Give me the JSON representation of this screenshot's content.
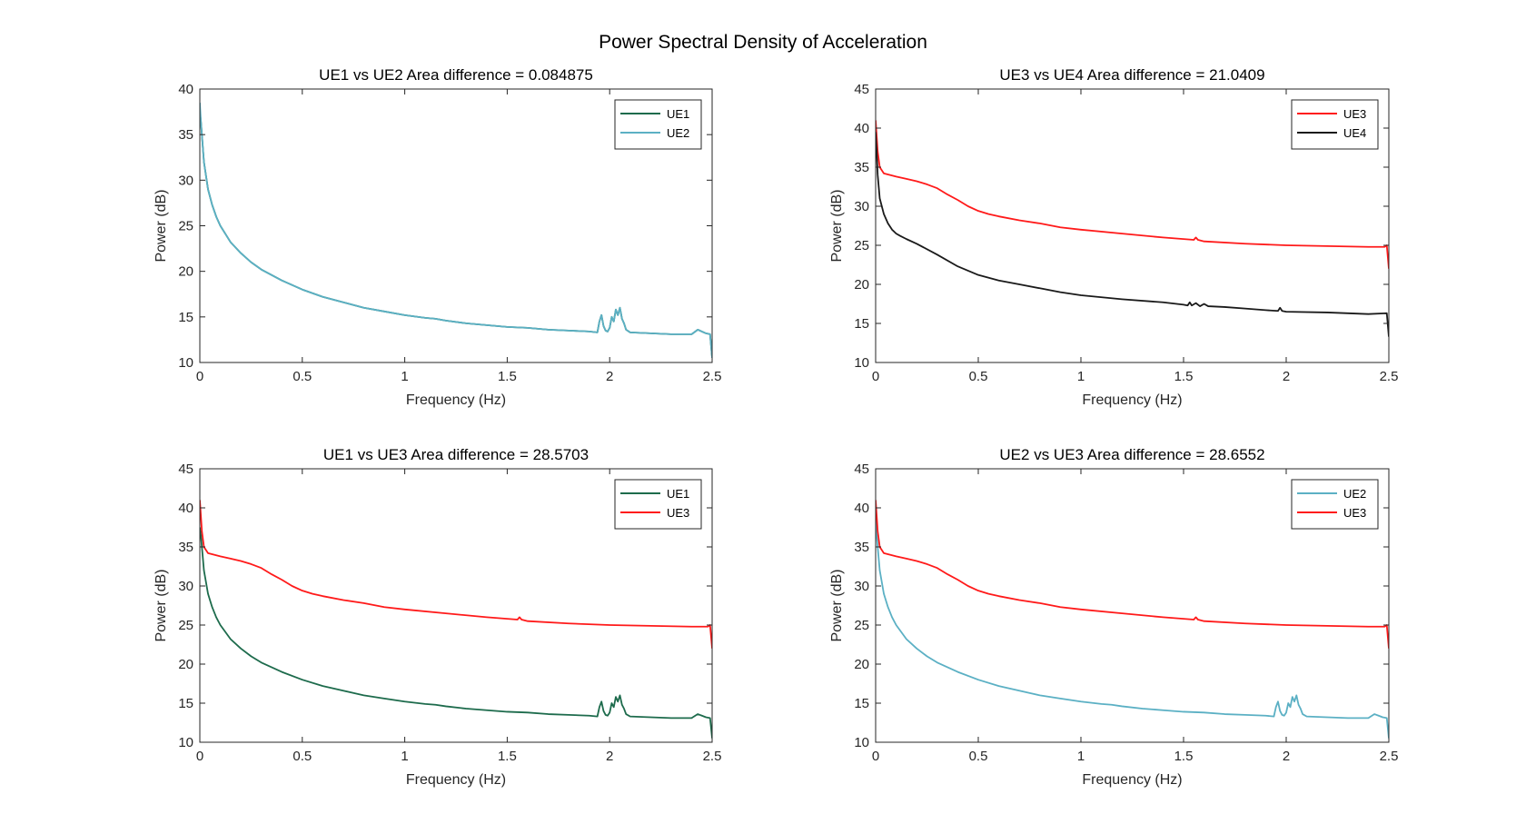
{
  "figure_title": "Power Spectral Density of Acceleration",
  "colors": {
    "UE1": "#1d6b4c",
    "UE2": "#5bb0c4",
    "UE3": "#ff1a1a",
    "UE4": "#1a1a1a"
  },
  "chart_data": [
    {
      "type": "line",
      "title": "UE1 vs UE2   Area difference = 0.084875",
      "xlabel": "Frequency (Hz)",
      "ylabel": "Power (dB)",
      "xlim": [
        0,
        2.5
      ],
      "ylim": [
        10,
        40
      ],
      "xticks": [
        "0",
        "0.5",
        "1",
        "1.5",
        "2",
        "2.5"
      ],
      "yticks": [
        "10",
        "15",
        "20",
        "25",
        "30",
        "35",
        "40"
      ],
      "legend_position": "top-right",
      "series": [
        {
          "name": "UE1",
          "color": "#1d6b4c",
          "x": [
            0,
            0.005,
            0.01,
            0.02,
            0.04,
            0.06,
            0.08,
            0.1,
            0.15,
            0.2,
            0.25,
            0.3,
            0.4,
            0.5,
            0.6,
            0.7,
            0.8,
            0.9,
            1.0,
            1.1,
            1.15,
            1.2,
            1.3,
            1.4,
            1.5,
            1.6,
            1.7,
            1.8,
            1.9,
            1.94,
            1.95,
            1.96,
            1.97,
            1.98,
            1.99,
            2.0,
            2.01,
            2.02,
            2.03,
            2.04,
            2.05,
            2.06,
            2.07,
            2.08,
            2.1,
            2.2,
            2.3,
            2.4,
            2.43,
            2.45,
            2.47,
            2.49,
            2.5
          ],
          "y": [
            37.5,
            36.5,
            35,
            32,
            29,
            27.3,
            26,
            25,
            23.2,
            22,
            21,
            20.2,
            19,
            18,
            17.2,
            16.6,
            16,
            15.6,
            15.2,
            14.9,
            14.8,
            14.6,
            14.3,
            14.1,
            13.9,
            13.8,
            13.6,
            13.5,
            13.4,
            13.3,
            14.5,
            15.2,
            14,
            13.5,
            13.4,
            13.8,
            15,
            14.5,
            15.8,
            15.2,
            16,
            14.8,
            14.3,
            13.6,
            13.3,
            13.2,
            13.1,
            13.1,
            13.6,
            13.4,
            13.2,
            13.1,
            10.5
          ]
        },
        {
          "name": "UE2",
          "color": "#5bb0c4",
          "x": [
            0,
            0.005,
            0.01,
            0.02,
            0.04,
            0.06,
            0.08,
            0.1,
            0.15,
            0.2,
            0.25,
            0.3,
            0.4,
            0.5,
            0.6,
            0.7,
            0.8,
            0.9,
            1.0,
            1.1,
            1.15,
            1.2,
            1.3,
            1.4,
            1.5,
            1.6,
            1.7,
            1.8,
            1.9,
            1.94,
            1.95,
            1.96,
            1.97,
            1.98,
            1.99,
            2.0,
            2.01,
            2.02,
            2.03,
            2.04,
            2.05,
            2.06,
            2.07,
            2.08,
            2.1,
            2.2,
            2.3,
            2.4,
            2.43,
            2.45,
            2.47,
            2.49,
            2.5
          ],
          "y": [
            38.5,
            36.5,
            35,
            32,
            29,
            27.3,
            26,
            25,
            23.2,
            22,
            21,
            20.2,
            19,
            18,
            17.2,
            16.6,
            16,
            15.6,
            15.2,
            14.9,
            14.8,
            14.6,
            14.3,
            14.1,
            13.9,
            13.8,
            13.6,
            13.5,
            13.4,
            13.3,
            14.5,
            15.2,
            14,
            13.5,
            13.4,
            13.8,
            15,
            14.5,
            15.8,
            15.2,
            16,
            14.8,
            14.3,
            13.6,
            13.3,
            13.2,
            13.1,
            13.1,
            13.6,
            13.4,
            13.2,
            13.1,
            10.5
          ]
        }
      ]
    },
    {
      "type": "line",
      "title": "UE3 vs UE4   Area difference = 21.0409",
      "xlabel": "Frequency (Hz)",
      "ylabel": "Power (dB)",
      "xlim": [
        0,
        2.5
      ],
      "ylim": [
        10,
        45
      ],
      "xticks": [
        "0",
        "0.5",
        "1",
        "1.5",
        "2",
        "2.5"
      ],
      "yticks": [
        "10",
        "15",
        "20",
        "25",
        "30",
        "35",
        "40",
        "45"
      ],
      "legend_position": "top-right",
      "series": [
        {
          "name": "UE3",
          "color": "#ff1a1a",
          "x": [
            0,
            0.005,
            0.01,
            0.02,
            0.04,
            0.07,
            0.1,
            0.15,
            0.2,
            0.25,
            0.3,
            0.35,
            0.4,
            0.45,
            0.5,
            0.55,
            0.6,
            0.7,
            0.8,
            0.9,
            1.0,
            1.2,
            1.4,
            1.5,
            1.55,
            1.56,
            1.57,
            1.6,
            1.8,
            2.0,
            2.2,
            2.4,
            2.48,
            2.49,
            2.5
          ],
          "y": [
            41,
            39,
            37,
            35,
            34.2,
            34,
            33.8,
            33.5,
            33.2,
            32.8,
            32.3,
            31.5,
            30.8,
            30,
            29.4,
            29,
            28.7,
            28.2,
            27.8,
            27.3,
            27,
            26.5,
            26,
            25.8,
            25.7,
            26,
            25.7,
            25.5,
            25.2,
            25,
            24.9,
            24.8,
            24.8,
            25,
            22
          ]
        },
        {
          "name": "UE4",
          "color": "#1a1a1a",
          "x": [
            0,
            0.005,
            0.01,
            0.02,
            0.04,
            0.06,
            0.08,
            0.1,
            0.12,
            0.15,
            0.2,
            0.3,
            0.4,
            0.5,
            0.6,
            0.7,
            0.8,
            0.9,
            1.0,
            1.2,
            1.4,
            1.5,
            1.52,
            1.53,
            1.54,
            1.56,
            1.58,
            1.6,
            1.62,
            1.7,
            1.8,
            1.9,
            1.96,
            1.97,
            1.98,
            2.0,
            2.2,
            2.4,
            2.49,
            2.5
          ],
          "y": [
            39.5,
            37,
            34,
            31,
            29,
            27.8,
            27,
            26.5,
            26.2,
            25.8,
            25.2,
            23.8,
            22.3,
            21.2,
            20.5,
            20,
            19.5,
            19,
            18.6,
            18.1,
            17.7,
            17.4,
            17.3,
            17.7,
            17.3,
            17.6,
            17.2,
            17.5,
            17.2,
            17.1,
            16.9,
            16.7,
            16.6,
            17,
            16.6,
            16.5,
            16.4,
            16.2,
            16.3,
            13.3
          ]
        }
      ]
    },
    {
      "type": "line",
      "title": "UE1 vs UE3   Area difference = 28.5703",
      "xlabel": "Frequency (Hz)",
      "ylabel": "Power (dB)",
      "xlim": [
        0,
        2.5
      ],
      "ylim": [
        10,
        45
      ],
      "xticks": [
        "0",
        "0.5",
        "1",
        "1.5",
        "2",
        "2.5"
      ],
      "yticks": [
        "10",
        "15",
        "20",
        "25",
        "30",
        "35",
        "40",
        "45"
      ],
      "legend_position": "top-right",
      "series": [
        {
          "name": "UE1",
          "color": "#1d6b4c",
          "x": [
            0,
            0.005,
            0.01,
            0.02,
            0.04,
            0.06,
            0.08,
            0.1,
            0.15,
            0.2,
            0.25,
            0.3,
            0.4,
            0.5,
            0.6,
            0.7,
            0.8,
            0.9,
            1.0,
            1.1,
            1.15,
            1.2,
            1.3,
            1.4,
            1.5,
            1.6,
            1.7,
            1.8,
            1.9,
            1.94,
            1.95,
            1.96,
            1.97,
            1.98,
            1.99,
            2.0,
            2.01,
            2.02,
            2.03,
            2.04,
            2.05,
            2.06,
            2.07,
            2.08,
            2.1,
            2.2,
            2.3,
            2.4,
            2.43,
            2.45,
            2.47,
            2.49,
            2.5
          ],
          "y": [
            37.5,
            36.5,
            35,
            32,
            29,
            27.3,
            26,
            25,
            23.2,
            22,
            21,
            20.2,
            19,
            18,
            17.2,
            16.6,
            16,
            15.6,
            15.2,
            14.9,
            14.8,
            14.6,
            14.3,
            14.1,
            13.9,
            13.8,
            13.6,
            13.5,
            13.4,
            13.3,
            14.5,
            15.2,
            14,
            13.5,
            13.4,
            13.8,
            15,
            14.5,
            15.8,
            15.2,
            16,
            14.8,
            14.3,
            13.6,
            13.3,
            13.2,
            13.1,
            13.1,
            13.6,
            13.4,
            13.2,
            13.1,
            10.5
          ]
        },
        {
          "name": "UE3",
          "color": "#ff1a1a",
          "x": [
            0,
            0.005,
            0.01,
            0.02,
            0.04,
            0.07,
            0.1,
            0.15,
            0.2,
            0.25,
            0.3,
            0.35,
            0.4,
            0.45,
            0.5,
            0.55,
            0.6,
            0.7,
            0.8,
            0.9,
            1.0,
            1.2,
            1.4,
            1.5,
            1.55,
            1.56,
            1.57,
            1.6,
            1.8,
            2.0,
            2.2,
            2.4,
            2.48,
            2.49,
            2.5
          ],
          "y": [
            41,
            39,
            37,
            35,
            34.2,
            34,
            33.8,
            33.5,
            33.2,
            32.8,
            32.3,
            31.5,
            30.8,
            30,
            29.4,
            29,
            28.7,
            28.2,
            27.8,
            27.3,
            27,
            26.5,
            26,
            25.8,
            25.7,
            26,
            25.7,
            25.5,
            25.2,
            25,
            24.9,
            24.8,
            24.8,
            25,
            22
          ]
        }
      ]
    },
    {
      "type": "line",
      "title": "UE2 vs UE3   Area difference = 28.6552",
      "xlabel": "Frequency (Hz)",
      "ylabel": "Power (dB)",
      "xlim": [
        0,
        2.5
      ],
      "ylim": [
        10,
        45
      ],
      "xticks": [
        "0",
        "0.5",
        "1",
        "1.5",
        "2",
        "2.5"
      ],
      "yticks": [
        "10",
        "15",
        "20",
        "25",
        "30",
        "35",
        "40",
        "45"
      ],
      "legend_position": "top-right",
      "series": [
        {
          "name": "UE2",
          "color": "#5bb0c4",
          "x": [
            0,
            0.005,
            0.01,
            0.02,
            0.04,
            0.06,
            0.08,
            0.1,
            0.15,
            0.2,
            0.25,
            0.3,
            0.4,
            0.5,
            0.6,
            0.7,
            0.8,
            0.9,
            1.0,
            1.1,
            1.15,
            1.2,
            1.3,
            1.4,
            1.5,
            1.6,
            1.7,
            1.8,
            1.9,
            1.94,
            1.95,
            1.96,
            1.97,
            1.98,
            1.99,
            2.0,
            2.01,
            2.02,
            2.03,
            2.04,
            2.05,
            2.06,
            2.07,
            2.08,
            2.1,
            2.2,
            2.3,
            2.4,
            2.43,
            2.45,
            2.47,
            2.49,
            2.5
          ],
          "y": [
            38.5,
            36.5,
            35,
            32,
            29,
            27.3,
            26,
            25,
            23.2,
            22,
            21,
            20.2,
            19,
            18,
            17.2,
            16.6,
            16,
            15.6,
            15.2,
            14.9,
            14.8,
            14.6,
            14.3,
            14.1,
            13.9,
            13.8,
            13.6,
            13.5,
            13.4,
            13.3,
            14.5,
            15.2,
            14,
            13.5,
            13.4,
            13.8,
            15,
            14.5,
            15.8,
            15.2,
            16,
            14.8,
            14.3,
            13.6,
            13.3,
            13.2,
            13.1,
            13.1,
            13.6,
            13.4,
            13.2,
            13.1,
            10.5
          ]
        },
        {
          "name": "UE3",
          "color": "#ff1a1a",
          "x": [
            0,
            0.005,
            0.01,
            0.02,
            0.04,
            0.07,
            0.1,
            0.15,
            0.2,
            0.25,
            0.3,
            0.35,
            0.4,
            0.45,
            0.5,
            0.55,
            0.6,
            0.7,
            0.8,
            0.9,
            1.0,
            1.2,
            1.4,
            1.5,
            1.55,
            1.56,
            1.57,
            1.6,
            1.8,
            2.0,
            2.2,
            2.4,
            2.48,
            2.49,
            2.5
          ],
          "y": [
            41,
            39,
            37,
            35,
            34.2,
            34,
            33.8,
            33.5,
            33.2,
            32.8,
            32.3,
            31.5,
            30.8,
            30,
            29.4,
            29,
            28.7,
            28.2,
            27.8,
            27.3,
            27,
            26.5,
            26,
            25.8,
            25.7,
            26,
            25.7,
            25.5,
            25.2,
            25,
            24.9,
            24.8,
            24.8,
            25,
            22
          ]
        }
      ]
    }
  ]
}
